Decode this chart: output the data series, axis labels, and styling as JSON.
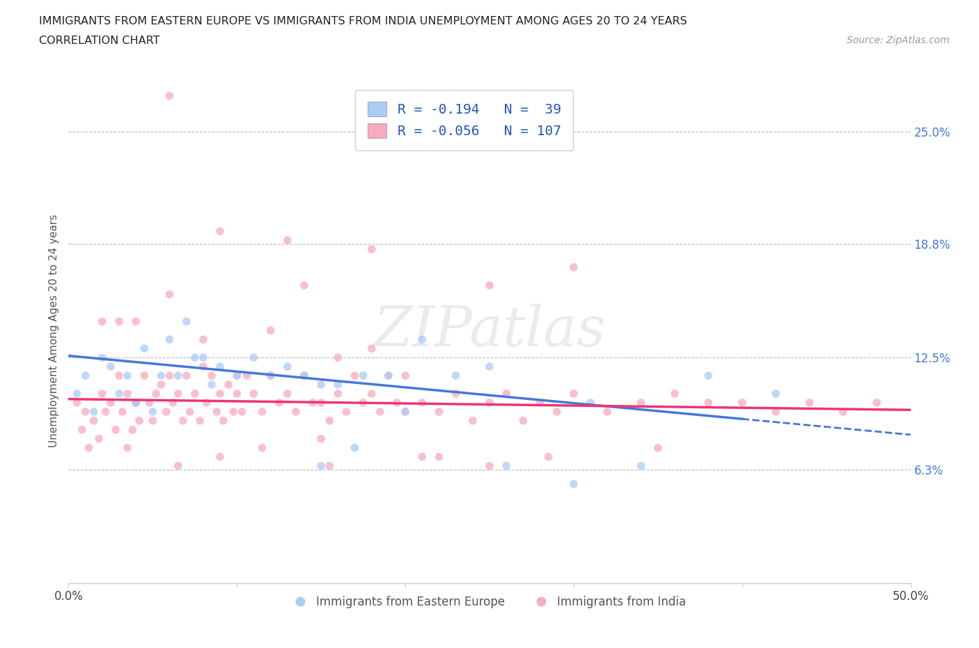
{
  "title_line1": "IMMIGRANTS FROM EASTERN EUROPE VS IMMIGRANTS FROM INDIA UNEMPLOYMENT AMONG AGES 20 TO 24 YEARS",
  "title_line2": "CORRELATION CHART",
  "source_text": "Source: ZipAtlas.com",
  "ylabel": "Unemployment Among Ages 20 to 24 years",
  "xlim": [
    0.0,
    0.5
  ],
  "ylim": [
    0.0,
    0.28
  ],
  "ytick_vals": [
    0.063,
    0.125,
    0.188,
    0.25
  ],
  "ytick_labels": [
    "6.3%",
    "12.5%",
    "18.8%",
    "25.0%"
  ],
  "r_eastern": -0.194,
  "n_eastern": 39,
  "r_india": -0.056,
  "n_india": 107,
  "color_eastern": "#aaccf8",
  "color_india": "#f8aac0",
  "trendline_eastern_color": "#4477dd",
  "trendline_india_color": "#ee3377",
  "legend_label_eastern": "Immigrants from Eastern Europe",
  "legend_label_india": "Immigrants from India",
  "watermark": "ZIPatlas",
  "trendline_east_x0": 0.0,
  "trendline_east_y0": 0.126,
  "trendline_east_x1": 0.4,
  "trendline_east_y1": 0.091,
  "trendline_east_solid_end": 0.4,
  "trendline_east_dash_end": 0.5,
  "trendline_india_x0": 0.0,
  "trendline_india_y0": 0.102,
  "trendline_india_x1": 0.5,
  "trendline_india_y1": 0.096,
  "eastern_x": [
    0.005,
    0.01,
    0.015,
    0.02,
    0.025,
    0.03,
    0.035,
    0.04,
    0.045,
    0.05,
    0.055,
    0.06,
    0.065,
    0.07,
    0.075,
    0.08,
    0.085,
    0.09,
    0.1,
    0.11,
    0.12,
    0.13,
    0.14,
    0.15,
    0.16,
    0.175,
    0.19,
    0.21,
    0.23,
    0.25,
    0.2,
    0.17,
    0.15,
    0.31,
    0.26,
    0.34,
    0.38,
    0.42,
    0.3
  ],
  "eastern_y": [
    0.105,
    0.115,
    0.095,
    0.125,
    0.12,
    0.105,
    0.115,
    0.1,
    0.13,
    0.095,
    0.115,
    0.135,
    0.115,
    0.145,
    0.125,
    0.125,
    0.11,
    0.12,
    0.115,
    0.125,
    0.115,
    0.12,
    0.115,
    0.11,
    0.11,
    0.115,
    0.115,
    0.135,
    0.115,
    0.12,
    0.095,
    0.075,
    0.065,
    0.1,
    0.065,
    0.065,
    0.115,
    0.105,
    0.055
  ],
  "india_x": [
    0.005,
    0.008,
    0.01,
    0.012,
    0.015,
    0.018,
    0.02,
    0.022,
    0.025,
    0.028,
    0.03,
    0.032,
    0.035,
    0.038,
    0.04,
    0.042,
    0.045,
    0.048,
    0.05,
    0.052,
    0.055,
    0.058,
    0.06,
    0.062,
    0.065,
    0.068,
    0.07,
    0.072,
    0.075,
    0.078,
    0.08,
    0.082,
    0.085,
    0.088,
    0.09,
    0.092,
    0.095,
    0.098,
    0.1,
    0.103,
    0.106,
    0.11,
    0.115,
    0.12,
    0.125,
    0.13,
    0.135,
    0.14,
    0.145,
    0.15,
    0.155,
    0.16,
    0.165,
    0.17,
    0.175,
    0.18,
    0.185,
    0.19,
    0.195,
    0.2,
    0.21,
    0.22,
    0.23,
    0.24,
    0.25,
    0.26,
    0.27,
    0.28,
    0.29,
    0.3,
    0.32,
    0.34,
    0.36,
    0.38,
    0.4,
    0.42,
    0.44,
    0.46,
    0.48,
    0.02,
    0.04,
    0.06,
    0.08,
    0.1,
    0.12,
    0.14,
    0.16,
    0.18,
    0.2,
    0.25,
    0.3,
    0.035,
    0.065,
    0.09,
    0.115,
    0.155,
    0.21,
    0.285,
    0.35,
    0.25,
    0.15,
    0.22,
    0.18,
    0.13,
    0.09,
    0.06,
    0.03
  ],
  "india_y": [
    0.1,
    0.085,
    0.095,
    0.075,
    0.09,
    0.08,
    0.105,
    0.095,
    0.1,
    0.085,
    0.115,
    0.095,
    0.105,
    0.085,
    0.1,
    0.09,
    0.115,
    0.1,
    0.09,
    0.105,
    0.11,
    0.095,
    0.115,
    0.1,
    0.105,
    0.09,
    0.115,
    0.095,
    0.105,
    0.09,
    0.12,
    0.1,
    0.115,
    0.095,
    0.105,
    0.09,
    0.11,
    0.095,
    0.105,
    0.095,
    0.115,
    0.105,
    0.095,
    0.115,
    0.1,
    0.105,
    0.095,
    0.115,
    0.1,
    0.1,
    0.09,
    0.105,
    0.095,
    0.115,
    0.1,
    0.105,
    0.095,
    0.115,
    0.1,
    0.095,
    0.1,
    0.095,
    0.105,
    0.09,
    0.1,
    0.105,
    0.09,
    0.1,
    0.095,
    0.105,
    0.095,
    0.1,
    0.105,
    0.1,
    0.1,
    0.095,
    0.1,
    0.095,
    0.1,
    0.145,
    0.145,
    0.16,
    0.135,
    0.115,
    0.14,
    0.165,
    0.125,
    0.13,
    0.115,
    0.165,
    0.175,
    0.075,
    0.065,
    0.07,
    0.075,
    0.065,
    0.07,
    0.07,
    0.075,
    0.065,
    0.08,
    0.07,
    0.185,
    0.19,
    0.195,
    0.27,
    0.145
  ]
}
